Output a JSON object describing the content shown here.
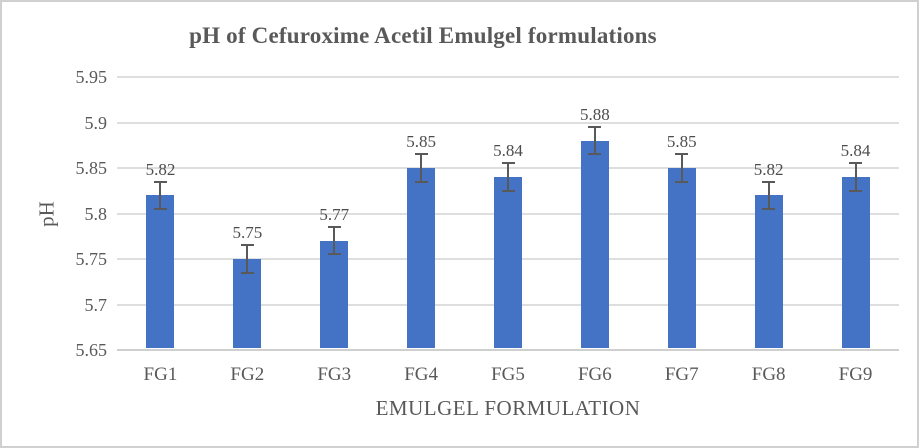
{
  "figure": {
    "background": "#ffffff",
    "border_color": "#d2cfcf"
  },
  "chart_data": {
    "type": "bar",
    "title": "pH of Cefuroxime Acetil Emulgel formulations",
    "xlabel": "EMULGEL FORMULATION",
    "ylabel": "pH",
    "categories": [
      "FG1",
      "FG2",
      "FG3",
      "FG4",
      "FG5",
      "FG6",
      "FG7",
      "FG8",
      "FG9"
    ],
    "values": [
      5.82,
      5.75,
      5.77,
      5.85,
      5.84,
      5.88,
      5.85,
      5.82,
      5.84
    ],
    "data_labels": [
      "5.82",
      "5.75",
      "5.77",
      "5.85",
      "5.84",
      "5.88",
      "5.85",
      "5.82",
      "5.84"
    ],
    "error_bars": {
      "visible": true,
      "magnitude": 0.015
    },
    "ylim": [
      5.65,
      5.95
    ],
    "ytick_step": 0.05,
    "ytick_labels": [
      "5.65",
      "5.7",
      "5.75",
      "5.8",
      "5.85",
      "5.9",
      "5.95"
    ],
    "grid": true,
    "legend": false,
    "colors": {
      "bar": "#4472C4",
      "error_bar": "#595959",
      "gridline": "#dedede",
      "axis_line": "#cfcfcf",
      "text": "#595959",
      "data_label": "#4d4d4d",
      "title": "#595959"
    }
  }
}
